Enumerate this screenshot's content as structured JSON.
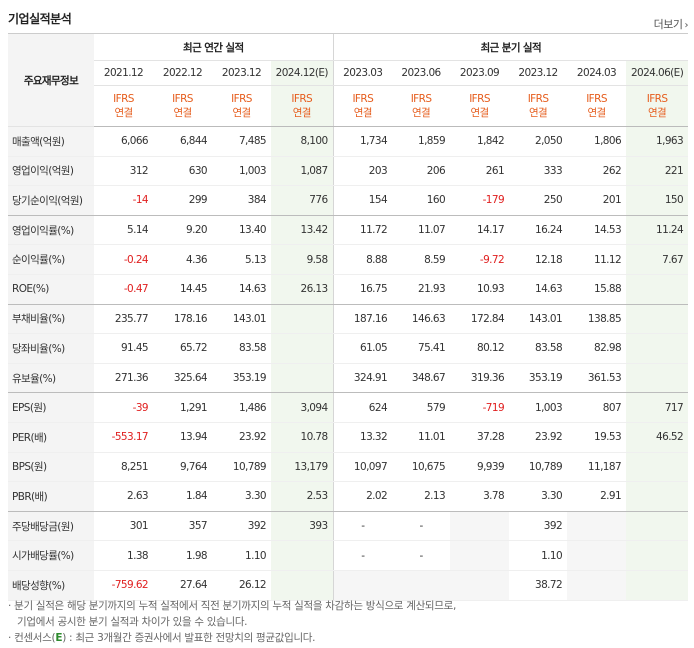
{
  "header": {
    "title": "기업실적분석",
    "more_label": "더보기",
    "more_icon": "chevron-right-icon"
  },
  "table": {
    "label_header": "주요재무정보",
    "group_annual": "최근 연간 실적",
    "group_quarterly": "최근 분기 실적",
    "ifrs_top": "IFRS",
    "ifrs_bottom": "연결",
    "periods": [
      "2021.12",
      "2022.12",
      "2023.12",
      "2024.12(E)",
      "2023.03",
      "2023.06",
      "2023.09",
      "2023.12",
      "2024.03",
      "2024.06(E)"
    ],
    "rows": [
      {
        "label": "매출액(억원)",
        "values": [
          "6,066",
          "6,844",
          "7,485",
          "8,100",
          "1,734",
          "1,859",
          "1,842",
          "2,050",
          "1,806",
          "1,963"
        ]
      },
      {
        "label": "영업이익(억원)",
        "values": [
          "312",
          "630",
          "1,003",
          "1,087",
          "203",
          "206",
          "261",
          "333",
          "262",
          "221"
        ]
      },
      {
        "label": "당기순이익(억원)",
        "values": [
          "-14",
          "299",
          "384",
          "776",
          "154",
          "160",
          "-179",
          "250",
          "201",
          "150"
        ]
      },
      {
        "label": "영업이익률(%)",
        "values": [
          "5.14",
          "9.20",
          "13.40",
          "13.42",
          "11.72",
          "11.07",
          "14.17",
          "16.24",
          "14.53",
          "11.24"
        ]
      },
      {
        "label": "순이익률(%)",
        "values": [
          "-0.24",
          "4.36",
          "5.13",
          "9.58",
          "8.88",
          "8.59",
          "-9.72",
          "12.18",
          "11.12",
          "7.67"
        ]
      },
      {
        "label": "ROE(%)",
        "values": [
          "-0.47",
          "14.45",
          "14.63",
          "26.13",
          "16.75",
          "21.93",
          "10.93",
          "14.63",
          "15.88",
          ""
        ]
      },
      {
        "label": "부채비율(%)",
        "values": [
          "235.77",
          "178.16",
          "143.01",
          "",
          "187.16",
          "146.63",
          "172.84",
          "143.01",
          "138.85",
          ""
        ]
      },
      {
        "label": "당좌비율(%)",
        "values": [
          "91.45",
          "65.72",
          "83.58",
          "",
          "61.05",
          "75.41",
          "80.12",
          "83.58",
          "82.98",
          ""
        ]
      },
      {
        "label": "유보율(%)",
        "values": [
          "271.36",
          "325.64",
          "353.19",
          "",
          "324.91",
          "348.67",
          "319.36",
          "353.19",
          "361.53",
          ""
        ]
      },
      {
        "label": "EPS(원)",
        "values": [
          "-39",
          "1,291",
          "1,486",
          "3,094",
          "624",
          "579",
          "-719",
          "1,003",
          "807",
          "717"
        ]
      },
      {
        "label": "PER(배)",
        "values": [
          "-553.17",
          "13.94",
          "23.92",
          "10.78",
          "13.32",
          "11.01",
          "37.28",
          "23.92",
          "19.53",
          "46.52"
        ]
      },
      {
        "label": "BPS(원)",
        "values": [
          "8,251",
          "9,764",
          "10,789",
          "13,179",
          "10,097",
          "10,675",
          "9,939",
          "10,789",
          "11,187",
          ""
        ]
      },
      {
        "label": "PBR(배)",
        "values": [
          "2.63",
          "1.84",
          "3.30",
          "2.53",
          "2.02",
          "2.13",
          "3.78",
          "3.30",
          "2.91",
          ""
        ]
      },
      {
        "label": "주당배당금(원)",
        "values": [
          "301",
          "357",
          "392",
          "393",
          "-",
          "-",
          "",
          "392",
          "",
          ""
        ]
      },
      {
        "label": "시가배당률(%)",
        "values": [
          "1.38",
          "1.98",
          "1.10",
          "",
          "-",
          "-",
          "",
          "1.10",
          "",
          ""
        ]
      },
      {
        "label": "배당성향(%)",
        "values": [
          "-759.62",
          "27.64",
          "26.12",
          "",
          "",
          "",
          "",
          "38.72",
          "",
          ""
        ]
      }
    ]
  },
  "notes": {
    "line1": "분기 실적은 해당 분기까지의 누적 실적에서 직전 분기까지의 누적 실적을 차감하는 방식으로 계산되므로,",
    "line2": "기업에서 공시한 분기 실적과 차이가 있을 수 있습니다.",
    "line3_prefix": "컨센서스(",
    "line3_e": "E",
    "line3_suffix": ") : 최근 3개월간 증권사에서 발표한 전망치의 평균값입니다."
  },
  "colors": {
    "accent_orange": "#e65d1d",
    "negative_red": "#e02020",
    "estimate_bg": "#f1f7ee"
  }
}
